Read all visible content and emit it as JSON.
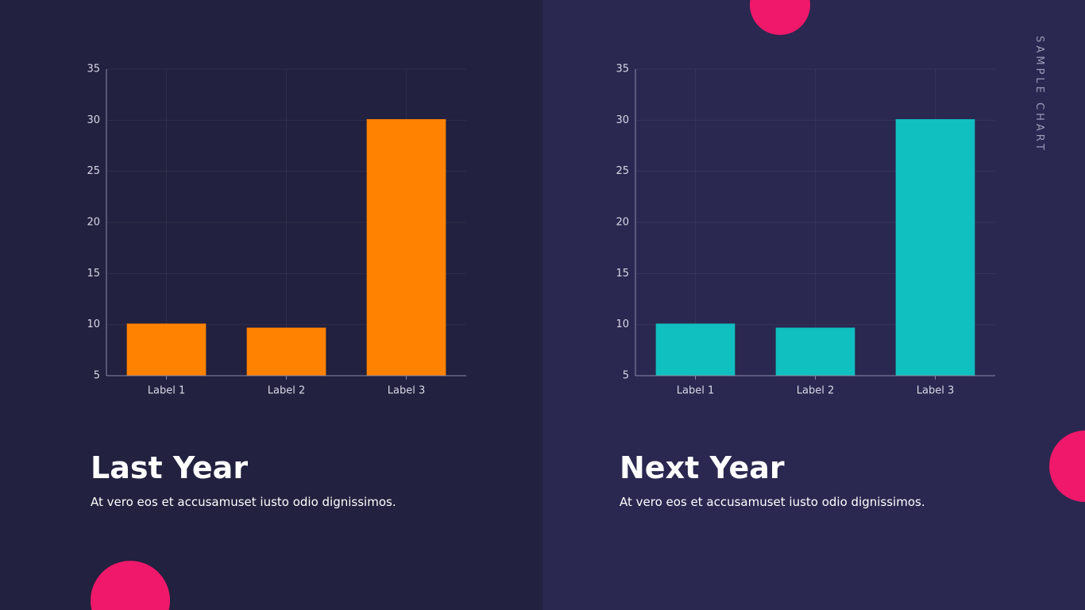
{
  "side_label": "SAMPLE CHART",
  "chart_data": [
    {
      "type": "bar",
      "title": "Last Year",
      "subtitle": "At vero eos et accusamuset iusto odio dignissimos.",
      "categories": [
        "Label 1",
        "Label 2",
        "Label 3"
      ],
      "values": [
        10.1,
        9.7,
        30.1
      ],
      "color": "#ff8200",
      "ylim": [
        5,
        35
      ],
      "yticks": [
        5,
        10,
        15,
        20,
        25,
        30,
        35
      ],
      "grid": true
    },
    {
      "type": "bar",
      "title": "Next Year",
      "subtitle": "At vero eos et accusamuset iusto odio dignissimos.",
      "categories": [
        "Label 1",
        "Label 2",
        "Label 3"
      ],
      "values": [
        10.1,
        9.7,
        30.1
      ],
      "color": "#10bfbf",
      "ylim": [
        5,
        35
      ],
      "yticks": [
        5,
        10,
        15,
        20,
        25,
        30,
        35
      ],
      "grid": true
    }
  ]
}
